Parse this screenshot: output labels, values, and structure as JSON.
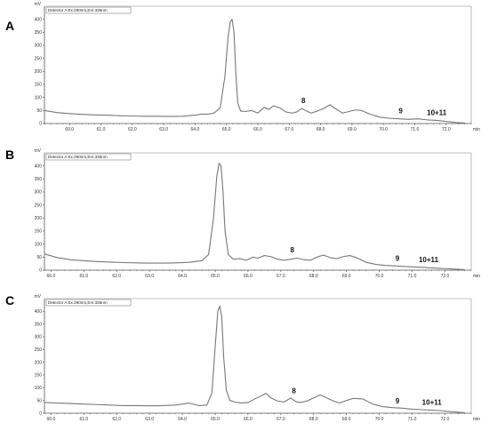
{
  "chart_data": [
    {
      "type": "line",
      "panel_label": "A",
      "detector_label": "Detector A Ex:290nm,Em:335nm",
      "y_unit": "mV",
      "x_unit": "min",
      "xlim": [
        59.2,
        72.8
      ],
      "ylim": [
        0,
        450
      ],
      "x_ticks": [
        60.0,
        61.0,
        62.0,
        63.0,
        64.0,
        65.0,
        66.0,
        67.0,
        68.0,
        69.0,
        70.0,
        71.0,
        72.0
      ],
      "x_tick_labels": [
        "60.0",
        "61.0",
        "62.0",
        "63.0",
        "64.0",
        "65.0",
        "66.0",
        "67.0",
        "68.0",
        "69.0",
        "70.0",
        "71.0",
        "72.0"
      ],
      "y_ticks": [
        0,
        50,
        100,
        150,
        200,
        250,
        300,
        350,
        400
      ],
      "y_tick_labels": [
        "0",
        "50",
        "100",
        "150",
        "200",
        "250",
        "300",
        "350",
        "400"
      ],
      "series": [
        {
          "x": [
            59.2,
            59.6,
            60.0,
            60.4,
            60.8,
            61.2,
            61.6,
            62.0,
            62.4,
            62.8,
            63.2,
            63.6,
            64.0,
            64.2,
            64.4,
            64.6,
            64.8,
            64.95,
            65.05,
            65.12,
            65.18,
            65.24,
            65.3,
            65.36,
            65.45,
            65.6,
            65.8,
            66.0,
            66.2,
            66.35,
            66.5,
            66.7,
            66.9,
            67.1,
            67.25,
            67.4,
            67.55,
            67.7,
            67.9,
            68.1,
            68.3,
            68.5,
            68.7,
            68.9,
            69.1,
            69.3,
            69.6,
            69.9,
            70.2,
            70.5,
            70.8,
            71.1,
            71.4,
            71.7,
            72.0,
            72.3,
            72.6
          ],
          "y": [
            50,
            42,
            38,
            35,
            33,
            32,
            30,
            29,
            28,
            28,
            27,
            28,
            32,
            36,
            36,
            40,
            60,
            180,
            330,
            390,
            400,
            350,
            190,
            80,
            48,
            46,
            50,
            40,
            62,
            54,
            68,
            60,
            44,
            40,
            45,
            58,
            48,
            40,
            48,
            58,
            72,
            55,
            40,
            46,
            52,
            50,
            35,
            24,
            20,
            18,
            16,
            18,
            14,
            12,
            8,
            4,
            2
          ]
        }
      ],
      "annotations": [
        {
          "text": "8",
          "x": 67.45,
          "y": 58
        },
        {
          "text": "9",
          "x": 70.55,
          "y": 18
        },
        {
          "text": "10+11",
          "x": 71.7,
          "y": 12
        }
      ]
    },
    {
      "type": "line",
      "panel_label": "B",
      "detector_label": "Detector A Ex:290nm,Em:335nm",
      "y_unit": "mV",
      "x_unit": "min",
      "xlim": [
        59.8,
        72.8
      ],
      "ylim": [
        0,
        450
      ],
      "x_ticks": [
        60.0,
        61.0,
        62.0,
        63.0,
        64.0,
        65.0,
        66.0,
        67.0,
        68.0,
        69.0,
        70.0,
        71.0,
        72.0
      ],
      "x_tick_labels": [
        "60.0",
        "61.0",
        "62.0",
        "63.0",
        "64.0",
        "65.0",
        "66.0",
        "67.0",
        "68.0",
        "69.0",
        "70.0",
        "71.0",
        "72.0"
      ],
      "y_ticks": [
        0,
        50,
        100,
        150,
        200,
        250,
        300,
        350,
        400
      ],
      "y_tick_labels": [
        "0",
        "50",
        "100",
        "150",
        "200",
        "250",
        "300",
        "350",
        "400"
      ],
      "series": [
        {
          "x": [
            59.8,
            60.2,
            60.6,
            61.0,
            61.4,
            61.8,
            62.2,
            62.6,
            63.0,
            63.4,
            63.8,
            64.2,
            64.6,
            64.8,
            64.95,
            65.05,
            65.12,
            65.18,
            65.24,
            65.3,
            65.4,
            65.55,
            65.75,
            65.95,
            66.15,
            66.3,
            66.5,
            66.7,
            66.9,
            67.1,
            67.3,
            67.5,
            67.7,
            67.9,
            68.1,
            68.3,
            68.5,
            68.7,
            68.9,
            69.1,
            69.3,
            69.6,
            69.9,
            70.2,
            70.5,
            70.8,
            71.1,
            71.4,
            71.7,
            72.0,
            72.3,
            72.6
          ],
          "y": [
            62,
            48,
            40,
            36,
            33,
            31,
            29,
            28,
            27,
            27,
            28,
            30,
            36,
            60,
            200,
            360,
            410,
            400,
            300,
            150,
            60,
            42,
            44,
            38,
            50,
            46,
            56,
            52,
            42,
            38,
            42,
            46,
            40,
            38,
            50,
            58,
            48,
            44,
            52,
            56,
            48,
            30,
            22,
            18,
            16,
            14,
            12,
            10,
            8,
            6,
            4,
            2
          ]
        }
      ],
      "annotations": [
        {
          "text": "8",
          "x": 67.35,
          "y": 48
        },
        {
          "text": "9",
          "x": 70.55,
          "y": 16
        },
        {
          "text": "10+11",
          "x": 71.5,
          "y": 10
        }
      ]
    },
    {
      "type": "line",
      "panel_label": "C",
      "detector_label": "Detector A Ex:290nm,Em:335nm",
      "y_unit": "mV",
      "x_unit": "min",
      "xlim": [
        59.8,
        72.8
      ],
      "ylim": [
        0,
        450
      ],
      "x_ticks": [
        60.0,
        61.0,
        62.0,
        63.0,
        64.0,
        65.0,
        66.0,
        67.0,
        68.0,
        69.0,
        70.0,
        71.0,
        72.0
      ],
      "x_tick_labels": [
        "60.0",
        "61.0",
        "62.0",
        "63.0",
        "64.0",
        "65.0",
        "66.0",
        "67.0",
        "68.0",
        "69.0",
        "70.0",
        "71.0",
        "72.0"
      ],
      "y_ticks": [
        0,
        50,
        100,
        150,
        200,
        250,
        300,
        350,
        400
      ],
      "y_tick_labels": [
        "0",
        "50",
        "100",
        "150",
        "200",
        "250",
        "300",
        "350",
        "400"
      ],
      "series": [
        {
          "x": [
            59.8,
            60.2,
            60.6,
            61.0,
            61.4,
            61.8,
            62.2,
            62.6,
            63.0,
            63.4,
            63.8,
            64.2,
            64.5,
            64.75,
            64.9,
            65.0,
            65.08,
            65.14,
            65.2,
            65.26,
            65.34,
            65.45,
            65.6,
            65.8,
            66.0,
            66.2,
            66.4,
            66.55,
            66.7,
            66.9,
            67.1,
            67.3,
            67.45,
            67.6,
            67.8,
            68.0,
            68.2,
            68.4,
            68.6,
            68.8,
            69.0,
            69.2,
            69.5,
            69.8,
            70.1,
            70.4,
            70.7,
            71.0,
            71.3,
            71.6,
            71.9,
            72.2,
            72.6
          ],
          "y": [
            42,
            40,
            38,
            36,
            34,
            32,
            30,
            30,
            29,
            30,
            32,
            40,
            30,
            32,
            80,
            260,
            400,
            420,
            380,
            220,
            90,
            50,
            44,
            40,
            42,
            56,
            68,
            78,
            60,
            48,
            44,
            60,
            46,
            42,
            48,
            60,
            72,
            60,
            48,
            40,
            50,
            58,
            56,
            36,
            26,
            22,
            20,
            16,
            14,
            12,
            10,
            6,
            2
          ]
        }
      ],
      "annotations": [
        {
          "text": "8",
          "x": 67.4,
          "y": 58
        },
        {
          "text": "9",
          "x": 70.55,
          "y": 18
        },
        {
          "text": "10+11",
          "x": 71.6,
          "y": 12
        }
      ]
    }
  ]
}
